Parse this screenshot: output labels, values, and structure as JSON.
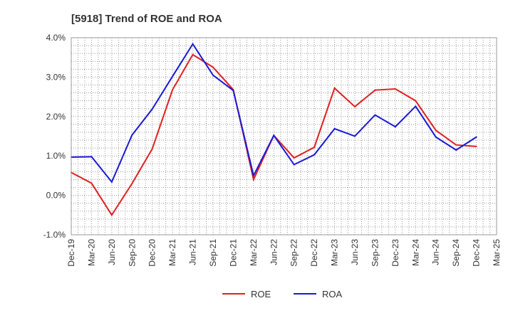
{
  "chart_data": {
    "type": "line",
    "title": "[5918]  Trend of ROE and ROA",
    "xlabel": "",
    "ylabel": "",
    "categories": [
      "Dec-19",
      "Mar-20",
      "Jun-20",
      "Sep-20",
      "Dec-20",
      "Mar-21",
      "Jun-21",
      "Sep-21",
      "Dec-21",
      "Mar-22",
      "Jun-22",
      "Sep-22",
      "Dec-22",
      "Mar-23",
      "Jun-23",
      "Sep-23",
      "Dec-23",
      "Mar-24",
      "Jun-24",
      "Sep-24",
      "Dec-24",
      "Mar-25"
    ],
    "ylim": [
      -1.0,
      4.0
    ],
    "yticks": [
      "4.0%",
      "3.0%",
      "2.0%",
      "1.0%",
      "0.0%",
      "-1.0%"
    ],
    "ytick_values": [
      4.0,
      3.0,
      2.0,
      1.0,
      0.0,
      -1.0
    ],
    "grid": true,
    "legend_position": "bottom",
    "series": [
      {
        "name": "ROE",
        "color": "#e02020",
        "values": [
          0.58,
          0.31,
          -0.5,
          0.3,
          1.18,
          2.68,
          3.57,
          3.25,
          2.68,
          0.4,
          1.52,
          0.95,
          1.22,
          2.72,
          2.25,
          2.67,
          2.7,
          2.4,
          1.65,
          1.28,
          1.24,
          null
        ]
      },
      {
        "name": "ROA",
        "color": "#1a1ad6",
        "values": [
          0.97,
          0.98,
          0.34,
          1.53,
          2.19,
          3.02,
          3.84,
          3.05,
          2.66,
          0.5,
          1.52,
          0.78,
          1.03,
          1.69,
          1.5,
          2.04,
          1.74,
          2.26,
          1.48,
          1.15,
          1.48,
          null
        ]
      }
    ]
  }
}
